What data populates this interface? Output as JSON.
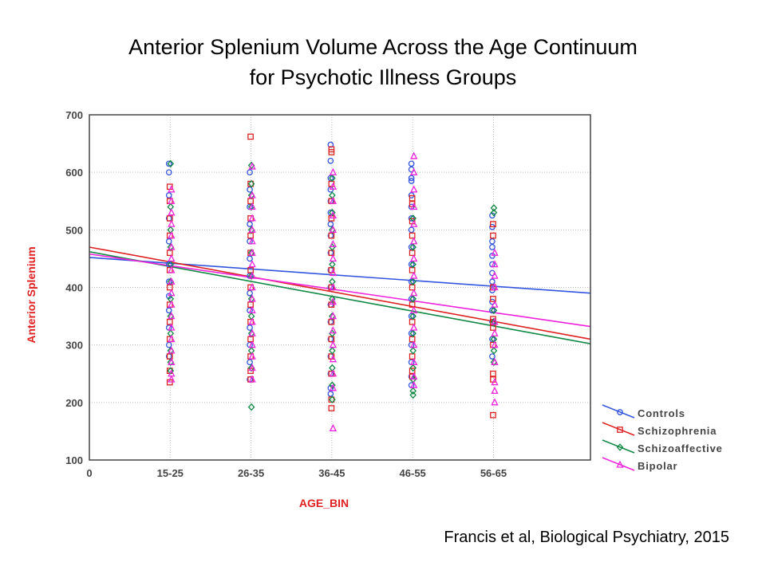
{
  "title": {
    "line1": "Anterior Splenium Volume Across the Age Continuum",
    "line2": "for Psychotic Illness Groups"
  },
  "citation": "Francis et al, Biological Psychiatry, 2015",
  "chart_data": {
    "type": "scatter",
    "xlabel": "AGE_BIN",
    "ylabel": "Anterior Splenium",
    "x_ticks": [
      "0",
      "15-25",
      "26-35",
      "36-45",
      "46-55",
      "56-65"
    ],
    "xlim": [
      0,
      6.2
    ],
    "ylim": [
      100,
      700
    ],
    "y_ticks": [
      100,
      200,
      300,
      400,
      500,
      600,
      700
    ],
    "grid": true,
    "legend_position": "right",
    "series": [
      {
        "name": "Controls",
        "color": "#3355dd",
        "marker": "circle",
        "fit": [
          [
            0,
            452
          ],
          [
            6.2,
            390
          ]
        ],
        "points": [
          [
            1,
            615
          ],
          [
            1,
            600
          ],
          [
            1,
            560
          ],
          [
            1,
            520
          ],
          [
            1,
            480
          ],
          [
            1,
            440
          ],
          [
            1,
            410
          ],
          [
            1,
            385
          ],
          [
            1,
            360
          ],
          [
            1,
            330
          ],
          [
            1,
            300
          ],
          [
            1,
            280
          ],
          [
            2,
            600
          ],
          [
            2,
            570
          ],
          [
            2,
            540
          ],
          [
            2,
            510
          ],
          [
            2,
            480
          ],
          [
            2,
            450
          ],
          [
            2,
            420
          ],
          [
            2,
            390
          ],
          [
            2,
            360
          ],
          [
            2,
            330
          ],
          [
            2,
            300
          ],
          [
            2,
            270
          ],
          [
            2,
            240
          ],
          [
            3,
            648
          ],
          [
            3,
            620
          ],
          [
            3,
            590
          ],
          [
            3,
            570
          ],
          [
            3,
            550
          ],
          [
            3,
            530
          ],
          [
            3,
            510
          ],
          [
            3,
            490
          ],
          [
            3,
            460
          ],
          [
            3,
            430
          ],
          [
            3,
            400
          ],
          [
            3,
            370
          ],
          [
            3,
            340
          ],
          [
            3,
            310
          ],
          [
            3,
            280
          ],
          [
            3,
            250
          ],
          [
            3,
            225
          ],
          [
            3,
            215
          ],
          [
            4,
            615
          ],
          [
            4,
            605
          ],
          [
            4,
            590
          ],
          [
            4,
            585
          ],
          [
            4,
            560
          ],
          [
            4,
            540
          ],
          [
            4,
            520
          ],
          [
            4,
            500
          ],
          [
            4,
            470
          ],
          [
            4,
            440
          ],
          [
            4,
            410
          ],
          [
            4,
            380
          ],
          [
            4,
            350
          ],
          [
            4,
            320
          ],
          [
            4,
            300
          ],
          [
            4,
            270
          ],
          [
            4,
            245
          ],
          [
            4,
            230
          ],
          [
            5,
            525
          ],
          [
            5,
            505
          ],
          [
            5,
            480
          ],
          [
            5,
            470
          ],
          [
            5,
            455
          ],
          [
            5,
            440
          ],
          [
            5,
            425
          ],
          [
            5,
            410
          ],
          [
            5,
            395
          ],
          [
            5,
            375
          ],
          [
            5,
            360
          ],
          [
            5,
            340
          ],
          [
            5,
            310
          ],
          [
            5,
            280
          ]
        ]
      },
      {
        "name": "Schizophrenia",
        "color": "#dd2222",
        "marker": "square",
        "fit": [
          [
            0,
            470
          ],
          [
            6.2,
            310
          ]
        ],
        "points": [
          [
            1,
            575
          ],
          [
            1,
            550
          ],
          [
            1,
            520
          ],
          [
            1,
            490
          ],
          [
            1,
            460
          ],
          [
            1,
            430
          ],
          [
            1,
            400
          ],
          [
            1,
            370
          ],
          [
            1,
            340
          ],
          [
            1,
            310
          ],
          [
            1,
            280
          ],
          [
            1,
            255
          ],
          [
            1,
            235
          ],
          [
            2,
            662
          ],
          [
            2,
            580
          ],
          [
            2,
            550
          ],
          [
            2,
            520
          ],
          [
            2,
            490
          ],
          [
            2,
            460
          ],
          [
            2,
            430
          ],
          [
            2,
            400
          ],
          [
            2,
            370
          ],
          [
            2,
            340
          ],
          [
            2,
            310
          ],
          [
            2,
            280
          ],
          [
            2,
            255
          ],
          [
            2,
            240
          ],
          [
            3,
            640
          ],
          [
            3,
            635
          ],
          [
            3,
            580
          ],
          [
            3,
            550
          ],
          [
            3,
            520
          ],
          [
            3,
            490
          ],
          [
            3,
            460
          ],
          [
            3,
            430
          ],
          [
            3,
            400
          ],
          [
            3,
            370
          ],
          [
            3,
            340
          ],
          [
            3,
            310
          ],
          [
            3,
            280
          ],
          [
            3,
            250
          ],
          [
            3,
            205
          ],
          [
            3,
            190
          ],
          [
            4,
            555
          ],
          [
            4,
            545
          ],
          [
            4,
            515
          ],
          [
            4,
            490
          ],
          [
            4,
            460
          ],
          [
            4,
            430
          ],
          [
            4,
            400
          ],
          [
            4,
            370
          ],
          [
            4,
            340
          ],
          [
            4,
            310
          ],
          [
            4,
            280
          ],
          [
            4,
            255
          ],
          [
            4,
            245
          ],
          [
            5,
            510
          ],
          [
            5,
            490
          ],
          [
            5,
            400
          ],
          [
            5,
            380
          ],
          [
            5,
            345
          ],
          [
            5,
            340
          ],
          [
            5,
            330
          ],
          [
            5,
            300
          ],
          [
            5,
            250
          ],
          [
            5,
            240
          ],
          [
            5,
            178
          ]
        ]
      },
      {
        "name": "Schizoaffective",
        "color": "#118844",
        "marker": "diamond",
        "fit": [
          [
            0,
            462
          ],
          [
            6.2,
            302
          ]
        ],
        "points": [
          [
            1,
            615
          ],
          [
            1,
            540
          ],
          [
            1,
            500
          ],
          [
            1,
            470
          ],
          [
            1,
            440
          ],
          [
            1,
            410
          ],
          [
            1,
            380
          ],
          [
            1,
            350
          ],
          [
            1,
            320
          ],
          [
            1,
            290
          ],
          [
            1,
            270
          ],
          [
            1,
            255
          ],
          [
            2,
            612
          ],
          [
            2,
            580
          ],
          [
            2,
            560
          ],
          [
            2,
            540
          ],
          [
            2,
            500
          ],
          [
            2,
            460
          ],
          [
            2,
            420
          ],
          [
            2,
            380
          ],
          [
            2,
            350
          ],
          [
            2,
            320
          ],
          [
            2,
            290
          ],
          [
            2,
            260
          ],
          [
            2,
            192
          ],
          [
            3,
            590
          ],
          [
            3,
            560
          ],
          [
            3,
            530
          ],
          [
            3,
            500
          ],
          [
            3,
            470
          ],
          [
            3,
            440
          ],
          [
            3,
            410
          ],
          [
            3,
            380
          ],
          [
            3,
            350
          ],
          [
            3,
            320
          ],
          [
            3,
            290
          ],
          [
            3,
            260
          ],
          [
            3,
            230
          ],
          [
            3,
            205
          ],
          [
            4,
            520
          ],
          [
            4,
            470
          ],
          [
            4,
            440
          ],
          [
            4,
            410
          ],
          [
            4,
            380
          ],
          [
            4,
            350
          ],
          [
            4,
            320
          ],
          [
            4,
            290
          ],
          [
            4,
            260
          ],
          [
            4,
            240
          ],
          [
            4,
            220
          ],
          [
            4,
            213
          ],
          [
            5,
            538
          ],
          [
            5,
            530
          ],
          [
            5,
            360
          ],
          [
            5,
            340
          ],
          [
            5,
            310
          ],
          [
            5,
            290
          ],
          [
            5,
            270
          ]
        ]
      },
      {
        "name": "Bipolar",
        "color": "#ee22dd",
        "marker": "triangle",
        "fit": [
          [
            0,
            458
          ],
          [
            6.2,
            332
          ]
        ],
        "points": [
          [
            1,
            570
          ],
          [
            1,
            550
          ],
          [
            1,
            530
          ],
          [
            1,
            510
          ],
          [
            1,
            490
          ],
          [
            1,
            470
          ],
          [
            1,
            450
          ],
          [
            1,
            430
          ],
          [
            1,
            410
          ],
          [
            1,
            390
          ],
          [
            1,
            370
          ],
          [
            1,
            350
          ],
          [
            1,
            330
          ],
          [
            1,
            310
          ],
          [
            1,
            290
          ],
          [
            1,
            270
          ],
          [
            1,
            250
          ],
          [
            1,
            240
          ],
          [
            2,
            610
          ],
          [
            2,
            560
          ],
          [
            2,
            540
          ],
          [
            2,
            520
          ],
          [
            2,
            500
          ],
          [
            2,
            480
          ],
          [
            2,
            460
          ],
          [
            2,
            440
          ],
          [
            2,
            420
          ],
          [
            2,
            400
          ],
          [
            2,
            380
          ],
          [
            2,
            360
          ],
          [
            2,
            340
          ],
          [
            2,
            320
          ],
          [
            2,
            300
          ],
          [
            2,
            280
          ],
          [
            2,
            260
          ],
          [
            2,
            240
          ],
          [
            3,
            600
          ],
          [
            3,
            575
          ],
          [
            3,
            550
          ],
          [
            3,
            525
          ],
          [
            3,
            500
          ],
          [
            3,
            475
          ],
          [
            3,
            450
          ],
          [
            3,
            425
          ],
          [
            3,
            400
          ],
          [
            3,
            375
          ],
          [
            3,
            350
          ],
          [
            3,
            325
          ],
          [
            3,
            300
          ],
          [
            3,
            275
          ],
          [
            3,
            250
          ],
          [
            3,
            225
          ],
          [
            3,
            155
          ],
          [
            4,
            628
          ],
          [
            4,
            600
          ],
          [
            4,
            570
          ],
          [
            4,
            540
          ],
          [
            4,
            510
          ],
          [
            4,
            480
          ],
          [
            4,
            450
          ],
          [
            4,
            420
          ],
          [
            4,
            390
          ],
          [
            4,
            360
          ],
          [
            4,
            330
          ],
          [
            4,
            300
          ],
          [
            4,
            270
          ],
          [
            4,
            245
          ],
          [
            4,
            230
          ],
          [
            5,
            460
          ],
          [
            5,
            440
          ],
          [
            5,
            420
          ],
          [
            5,
            400
          ],
          [
            5,
            370
          ],
          [
            5,
            340
          ],
          [
            5,
            320
          ],
          [
            5,
            300
          ],
          [
            5,
            270
          ],
          [
            5,
            235
          ],
          [
            5,
            220
          ],
          [
            5,
            200
          ]
        ]
      }
    ]
  }
}
